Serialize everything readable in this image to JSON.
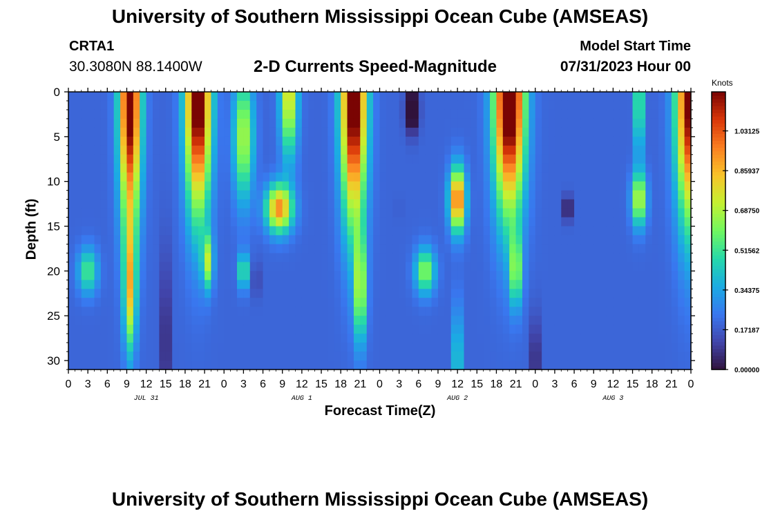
{
  "header": {
    "title": "University of Southern Mississippi Ocean Cube (AMSEAS)",
    "station": "CRTA1",
    "coordinates": "30.3080N  88.1400W",
    "subtitle": "2-D Currents Speed-Magnitude",
    "model_start_label": "Model Start Time",
    "model_start_value": "07/31/2023 Hour 00"
  },
  "footer": {
    "title": "University of Southern Mississippi Ocean Cube (AMSEAS)"
  },
  "chart_data": {
    "type": "heatmap",
    "title": "2-D Currents Speed-Magnitude",
    "xlabel": "Forecast Time(Z)",
    "ylabel": "Depth (ft)",
    "x_range_hours": [
      0,
      96
    ],
    "y_range_ft": [
      0,
      31
    ],
    "y_ticks": [
      "0",
      "5",
      "10",
      "15",
      "20",
      "25",
      "30"
    ],
    "x_ticks": [
      "0",
      "3",
      "6",
      "9",
      "12",
      "15",
      "18",
      "21",
      "0",
      "3",
      "6",
      "9",
      "12",
      "15",
      "18",
      "21",
      "0",
      "3",
      "6",
      "9",
      "12",
      "15",
      "18",
      "21",
      "0",
      "3",
      "6",
      "9",
      "12",
      "15",
      "18",
      "21",
      "0"
    ],
    "dates": [
      "JUL 31",
      "AUG 1",
      "AUG 2",
      "AUG 3"
    ],
    "colorbar": {
      "unit": "Knots",
      "min": 0.0,
      "max": 1.2,
      "ticks": [
        "0.00000",
        "0.17187",
        "0.34375",
        "0.51562",
        "0.68750",
        "0.85937",
        "1.03125"
      ],
      "tick_values": [
        0.0,
        0.171875,
        0.34375,
        0.515625,
        0.6875,
        0.859375,
        1.03125
      ]
    },
    "features": [
      {
        "hour": 9.5,
        "depth": 0,
        "speed": 1.1,
        "sx": 1.6,
        "sy": 15
      },
      {
        "hour": 9.5,
        "depth": 22,
        "speed": 0.55,
        "sx": 0.9,
        "sy": 7
      },
      {
        "hour": 3,
        "depth": 20,
        "speed": 0.35,
        "sx": 1.5,
        "sy": 2.5
      },
      {
        "hour": 20,
        "depth": 0,
        "speed": 1.15,
        "sx": 1.9,
        "sy": 13
      },
      {
        "hour": 21.5,
        "depth": 19,
        "speed": 0.45,
        "sx": 0.8,
        "sy": 3
      },
      {
        "hour": 27,
        "depth": 5,
        "speed": 0.5,
        "sx": 1.5,
        "sy": 7
      },
      {
        "hour": 34,
        "depth": 0,
        "speed": 0.62,
        "sx": 1.3,
        "sy": 7
      },
      {
        "hour": 32.5,
        "depth": 13,
        "speed": 0.75,
        "sx": 2.0,
        "sy": 2.6
      },
      {
        "hour": 27,
        "depth": 20,
        "speed": 0.38,
        "sx": 0.8,
        "sy": 2
      },
      {
        "hour": 44,
        "depth": 0,
        "speed": 1.15,
        "sx": 1.9,
        "sy": 14
      },
      {
        "hour": 45,
        "depth": 22,
        "speed": 0.5,
        "sx": 0.9,
        "sy": 6
      },
      {
        "hour": 60,
        "depth": 12,
        "speed": 0.85,
        "sx": 1.2,
        "sy": 3.5
      },
      {
        "hour": 60,
        "depth": 30,
        "speed": 0.5,
        "sx": 0.5,
        "sy": 6
      },
      {
        "hour": 55,
        "depth": 20,
        "speed": 0.45,
        "sx": 1.5,
        "sy": 2.5
      },
      {
        "hour": 68,
        "depth": 0,
        "speed": 1.2,
        "sx": 2.3,
        "sy": 13
      },
      {
        "hour": 69,
        "depth": 20,
        "speed": 0.42,
        "sx": 0.9,
        "sy": 4
      },
      {
        "hour": 88,
        "depth": 12,
        "speed": 0.55,
        "sx": 1.1,
        "sy": 3
      },
      {
        "hour": 88,
        "depth": 1,
        "speed": 0.55,
        "sx": 0.6,
        "sy": 6
      },
      {
        "hour": 96,
        "depth": 0,
        "speed": 1.1,
        "sx": 2.2,
        "sy": 14
      },
      {
        "hour": 53,
        "depth": 2,
        "speed": -0.35,
        "sx": 1.0,
        "sy": 2.5
      },
      {
        "hour": 77,
        "depth": 13,
        "speed": -0.28,
        "sx": 0.6,
        "sy": 1.4
      },
      {
        "hour": 51,
        "depth": 13,
        "speed": -0.18,
        "sx": 0.3,
        "sy": 1.5
      },
      {
        "hour": 15,
        "depth": 28,
        "speed": -0.3,
        "sx": 0.5,
        "sy": 10
      },
      {
        "hour": 72,
        "depth": 30,
        "speed": -0.3,
        "sx": 0.5,
        "sy": 5
      },
      {
        "hour": 29,
        "depth": 21,
        "speed": -0.15,
        "sx": 0.5,
        "sy": 2
      }
    ],
    "background_speed": 0.2
  }
}
